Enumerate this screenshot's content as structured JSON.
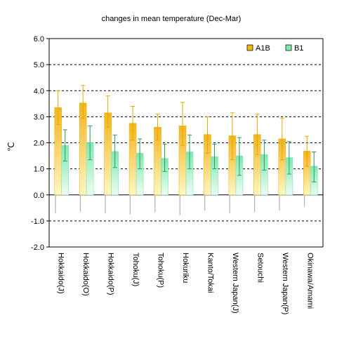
{
  "chart_data": {
    "type": "bar",
    "title": "changes in mean temperature (Dec-Mar)",
    "ylabel": "℃",
    "xlabel": "",
    "ylim": [
      -2.0,
      6.0
    ],
    "yticks": [
      "-2.0",
      "-1.0",
      "0.0",
      "1.0",
      "2.0",
      "3.0",
      "4.0",
      "5.0",
      "6.0"
    ],
    "grid": "horizontal dashed",
    "legend_position": "top-right",
    "categories": [
      "Hokkaido(J)",
      "Hokkaido(O)",
      "Hokkaido(P)",
      "Tohoku(J)",
      "Tohoku(P)",
      "Hokuriku",
      "Kanto/Tokai",
      "Western Japan(J)",
      "Setouchi",
      "Western Japan(P)",
      "Okinawa/Amami"
    ],
    "series": [
      {
        "name": "A1B",
        "color": "#f2b51c",
        "values": [
          3.35,
          3.53,
          3.15,
          2.75,
          2.6,
          2.65,
          2.32,
          2.27,
          2.32,
          2.15,
          1.68
        ],
        "err_high": [
          4.0,
          4.2,
          3.8,
          3.4,
          3.1,
          3.55,
          3.0,
          3.15,
          3.1,
          2.95,
          2.25
        ],
        "err_low": [
          2.7,
          2.95,
          2.6,
          2.1,
          2.1,
          1.9,
          1.6,
          1.35,
          1.55,
          1.35,
          1.1
        ]
      },
      {
        "name": "B1",
        "color": "#7fe8b0",
        "values": [
          1.9,
          2.0,
          1.67,
          1.6,
          1.4,
          1.65,
          1.47,
          1.5,
          1.55,
          1.43,
          1.1
        ],
        "err_high": [
          2.5,
          2.65,
          2.3,
          2.15,
          1.95,
          2.3,
          1.95,
          2.2,
          2.1,
          2.05,
          1.65
        ],
        "err_low": [
          1.3,
          1.35,
          1.05,
          1.0,
          0.9,
          1.0,
          1.0,
          0.75,
          0.95,
          0.8,
          0.5
        ]
      }
    ],
    "variability_range": [
      [
        -0.7,
        0.72
      ],
      [
        -0.65,
        0.72
      ],
      [
        -0.7,
        0.72
      ],
      [
        -0.75,
        0.75
      ],
      [
        -0.67,
        0.7
      ],
      [
        -0.78,
        0.72
      ],
      [
        -0.6,
        0.65
      ],
      [
        -0.7,
        0.72
      ],
      [
        -0.65,
        0.67
      ],
      [
        -0.6,
        0.68
      ],
      [
        -0.45,
        0.48
      ]
    ]
  }
}
